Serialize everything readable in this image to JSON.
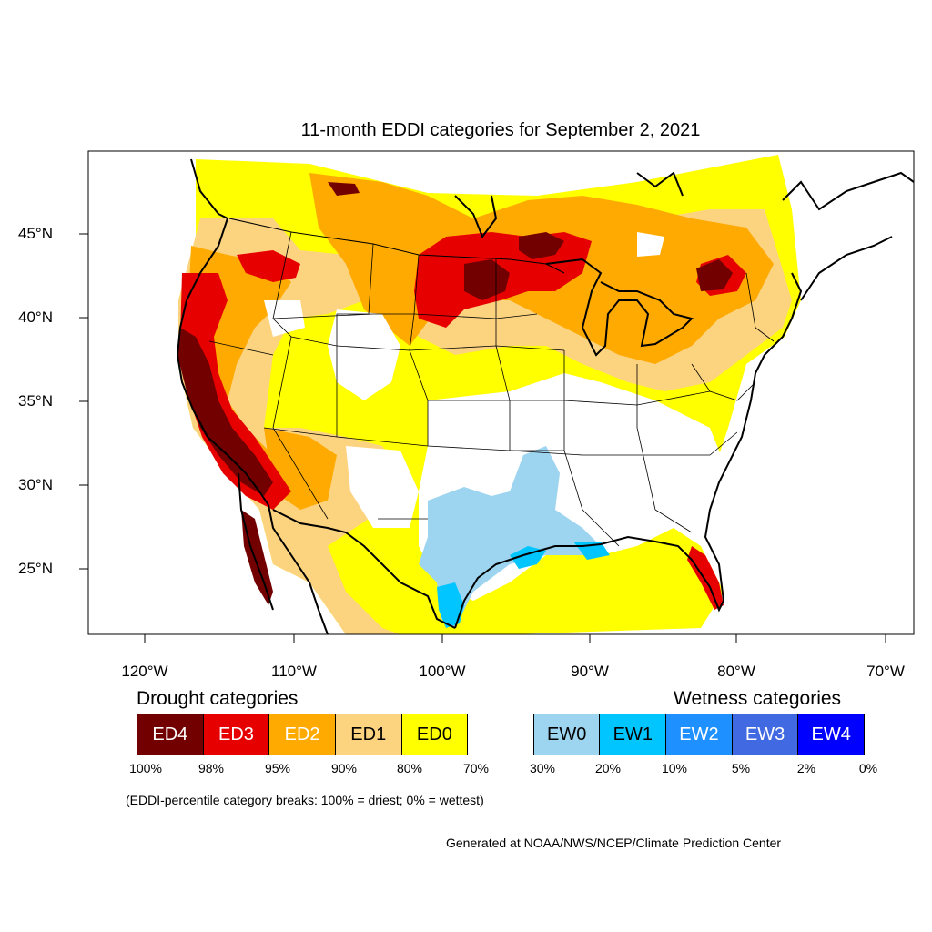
{
  "title": "11-month EDDI categories for September 2, 2021",
  "lat_labels": [
    "45°N",
    "40°N",
    "35°N",
    "30°N",
    "25°N"
  ],
  "lon_labels": [
    "120°W",
    "110°W",
    "100°W",
    "90°W",
    "80°W",
    "70°W"
  ],
  "legend": {
    "drought_heading": "Drought categories",
    "wetness_heading": "Wetness categories",
    "categories": [
      {
        "label": "ED4",
        "color": "#730000",
        "text_color": "#ffffff"
      },
      {
        "label": "ED3",
        "color": "#e60000",
        "text_color": "#ffffff"
      },
      {
        "label": "ED2",
        "color": "#ffaa00",
        "text_color": "#ffffff"
      },
      {
        "label": "ED1",
        "color": "#fcd37f",
        "text_color": "#000000"
      },
      {
        "label": "ED0",
        "color": "#ffff00",
        "text_color": "#000000"
      },
      {
        "label": "",
        "color": "#ffffff",
        "text_color": "#000000"
      },
      {
        "label": "EW0",
        "color": "#9dd4f0",
        "text_color": "#000000"
      },
      {
        "label": "EW1",
        "color": "#00c5ff",
        "text_color": "#000000"
      },
      {
        "label": "EW2",
        "color": "#1e90ff",
        "text_color": "#ffffff"
      },
      {
        "label": "EW3",
        "color": "#4169e1",
        "text_color": "#ffffff"
      },
      {
        "label": "EW4",
        "color": "#0000ff",
        "text_color": "#ffffff"
      }
    ],
    "percentiles": [
      "100%",
      "98%",
      "95%",
      "90%",
      "80%",
      "70%",
      "30%",
      "20%",
      "10%",
      "5%",
      "2%",
      "0%"
    ]
  },
  "note": "(EDDI-percentile category breaks: 100% = driest; 0% = wettest)",
  "credit": "Generated at NOAA/NWS/NCEP/Climate Prediction Center"
}
